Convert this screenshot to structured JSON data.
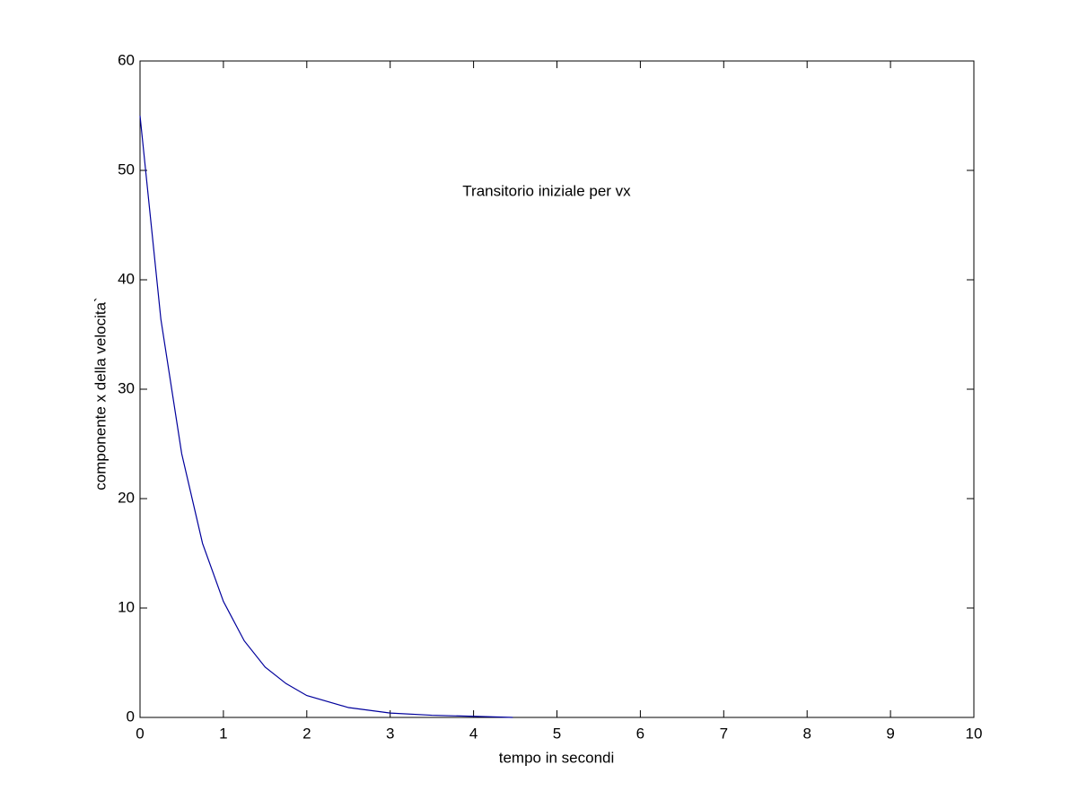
{
  "chart_data": {
    "type": "line",
    "xlabel": "tempo in secondi",
    "ylabel": "componente x della velocita`",
    "annotation": "Transitorio iniziale per vx",
    "x": [
      0,
      0.25,
      0.5,
      0.75,
      1,
      1.25,
      1.5,
      1.75,
      2,
      2.5,
      3,
      3.5,
      4,
      4.47
    ],
    "series": [
      {
        "name": "vx",
        "color": "#00009c",
        "values": [
          55,
          36.4,
          24.1,
          15.9,
          10.6,
          7.0,
          4.6,
          3.1,
          2.0,
          0.9,
          0.4,
          0.2,
          0.1,
          0.0
        ]
      }
    ],
    "xlim": [
      0,
      10
    ],
    "xticks": [
      0,
      1,
      2,
      3,
      4,
      5,
      6,
      7,
      8,
      9,
      10
    ],
    "ylim": [
      0,
      60
    ],
    "yticks": [
      0,
      10,
      20,
      30,
      40,
      50,
      60
    ]
  }
}
